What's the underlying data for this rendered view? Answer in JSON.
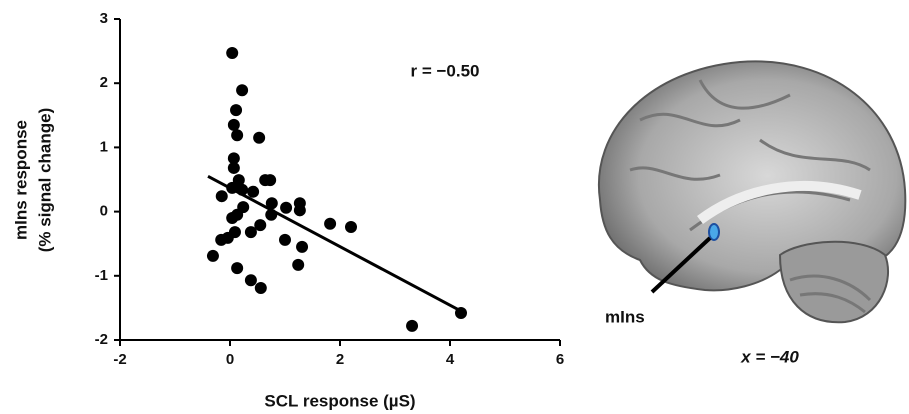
{
  "chart_data": {
    "type": "scatter",
    "x_label": "SCL response (µS)",
    "y_label": [
      "mIns response",
      "(% signal change)"
    ],
    "xlim": [
      -2,
      6
    ],
    "xticks": [
      -2,
      0,
      2,
      4,
      6
    ],
    "ylim": [
      -2,
      3
    ],
    "yticks": [
      -2,
      -1,
      0,
      1,
      2,
      3
    ],
    "color": "#000000",
    "x": [
      0.04,
      0.22,
      0.11,
      0.07,
      0.13,
      0.53,
      0.07,
      0.07,
      0.16,
      0.64,
      0.73,
      0.04,
      0.22,
      0.42,
      -0.15,
      1.27,
      1.27,
      1.02,
      0.76,
      1.82,
      2.2,
      0.24,
      0.13,
      0.04,
      0.75,
      0.55,
      0.38,
      0.09,
      -0.04,
      -0.16,
      1.0,
      1.31,
      -0.31,
      0.13,
      1.24,
      0.38,
      0.56,
      3.31,
      4.2
    ],
    "values": [
      2.47,
      1.89,
      1.58,
      1.35,
      1.19,
      1.15,
      0.83,
      0.68,
      0.49,
      0.49,
      0.49,
      0.37,
      0.34,
      0.31,
      0.24,
      0.13,
      0.02,
      0.06,
      0.13,
      -0.19,
      -0.24,
      0.07,
      -0.05,
      -0.1,
      -0.05,
      -0.21,
      -0.32,
      -0.32,
      -0.41,
      -0.44,
      -0.44,
      -0.55,
      -0.69,
      -0.88,
      -0.83,
      -1.07,
      -1.19,
      -1.78,
      -1.58
    ],
    "fit_line": {
      "x": [
        -0.4,
        4.2
      ],
      "y": [
        0.55,
        -1.55
      ]
    },
    "annotations": [
      "r = −0.50",
      "mIns",
      "x = −40"
    ]
  }
}
